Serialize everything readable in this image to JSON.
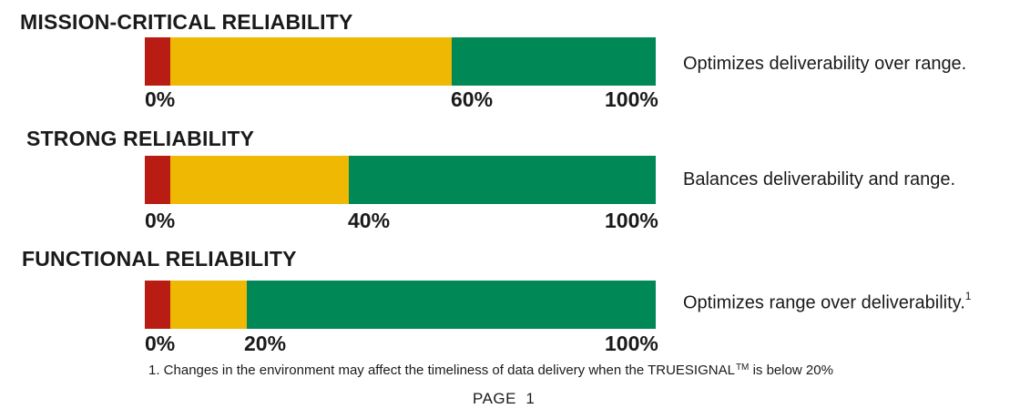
{
  "chart_data": [
    {
      "type": "bar",
      "orientation": "horizontal-stacked",
      "title": "MISSION-CRITICAL RELIABILITY",
      "description": "Optimizes deliverability over range.",
      "footnote_ref": "",
      "threshold_pct": 60,
      "segments": [
        {
          "name": "red",
          "from": 0,
          "to": 5,
          "color": "#b91c13"
        },
        {
          "name": "yellow",
          "from": 5,
          "to": 60,
          "color": "#efb903"
        },
        {
          "name": "green",
          "from": 60,
          "to": 100,
          "color": "#008856"
        }
      ],
      "ticks": [
        {
          "value": 0,
          "label": "0%"
        },
        {
          "value": 60,
          "label": "60%"
        },
        {
          "value": 100,
          "label": "100%"
        }
      ],
      "xlim": [
        0,
        100
      ]
    },
    {
      "type": "bar",
      "orientation": "horizontal-stacked",
      "title": "STRONG RELIABILITY",
      "description": "Balances deliverability and range.",
      "footnote_ref": "",
      "threshold_pct": 40,
      "segments": [
        {
          "name": "red",
          "from": 0,
          "to": 5,
          "color": "#b91c13"
        },
        {
          "name": "yellow",
          "from": 5,
          "to": 40,
          "color": "#efb903"
        },
        {
          "name": "green",
          "from": 40,
          "to": 100,
          "color": "#008856"
        }
      ],
      "ticks": [
        {
          "value": 0,
          "label": "0%"
        },
        {
          "value": 40,
          "label": "40%"
        },
        {
          "value": 100,
          "label": "100%"
        }
      ],
      "xlim": [
        0,
        100
      ]
    },
    {
      "type": "bar",
      "orientation": "horizontal-stacked",
      "title": "FUNCTIONAL RELIABILITY",
      "description": "Optimizes range over deliverability.",
      "footnote_ref": "1",
      "threshold_pct": 20,
      "segments": [
        {
          "name": "red",
          "from": 0,
          "to": 5,
          "color": "#b91c13"
        },
        {
          "name": "yellow",
          "from": 5,
          "to": 20,
          "color": "#efb903"
        },
        {
          "name": "green",
          "from": 20,
          "to": 100,
          "color": "#008856"
        }
      ],
      "ticks": [
        {
          "value": 0,
          "label": "0%"
        },
        {
          "value": 20,
          "label": "20%"
        },
        {
          "value": 100,
          "label": "100%"
        }
      ],
      "xlim": [
        0,
        100
      ]
    }
  ],
  "footnote": {
    "text": "1. Changes in the environment may affect the timeliness of data delivery when the TRUESIGNAL",
    "trademark": "TM",
    "suffix": " is below 20%"
  },
  "page_label": "PAGE  1"
}
